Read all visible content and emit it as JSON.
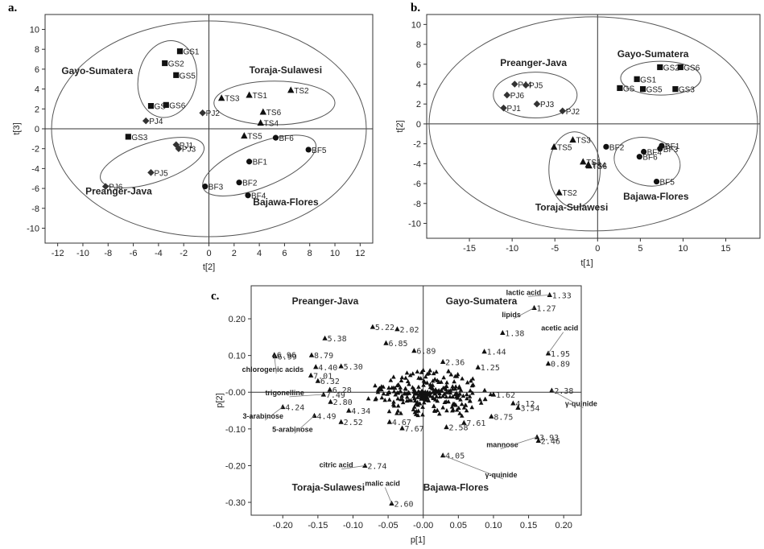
{
  "chart_data": [
    {
      "panel": "a.",
      "type": "scatter",
      "xlabel": "t[2]",
      "ylabel": "t[3]",
      "xlim": [
        -13,
        13
      ],
      "ylim": [
        -11.5,
        11.5
      ],
      "xticks": [
        -12,
        -10,
        -8,
        -6,
        -4,
        -2,
        0,
        2,
        4,
        6,
        8,
        10,
        12
      ],
      "yticks": [
        -10,
        -8,
        -6,
        -4,
        -2,
        0,
        2,
        4,
        6,
        8,
        10
      ],
      "groups": [
        {
          "name": "Gayo-Sumatera",
          "marker": "square",
          "points": [
            {
              "label": "GS1",
              "x": -2.3,
              "y": 7.8
            },
            {
              "label": "GS2",
              "x": -3.5,
              "y": 6.6
            },
            {
              "label": "GS5",
              "x": -2.6,
              "y": 5.4
            },
            {
              "label": "GS6",
              "x": -3.4,
              "y": 2.4
            },
            {
              "label": "GS",
              "x": -4.6,
              "y": 2.3
            },
            {
              "label": "GS3",
              "x": -6.4,
              "y": -0.8
            }
          ]
        },
        {
          "name": "Toraja-Sulawesi",
          "marker": "triangle",
          "points": [
            {
              "label": "TS2",
              "x": 6.5,
              "y": 3.9
            },
            {
              "label": "TS1",
              "x": 3.2,
              "y": 3.4
            },
            {
              "label": "TS3",
              "x": 1.0,
              "y": 3.1
            },
            {
              "label": "TS6",
              "x": 4.3,
              "y": 1.7
            },
            {
              "label": "TS4",
              "x": 4.1,
              "y": 0.6
            },
            {
              "label": "TS5",
              "x": 2.8,
              "y": -0.7
            }
          ]
        },
        {
          "name": "Preanger-Java",
          "marker": "diamond",
          "points": [
            {
              "label": "PJ4",
              "x": -5.0,
              "y": 0.8
            },
            {
              "label": "PJ2",
              "x": -0.5,
              "y": 1.6
            },
            {
              "label": "PJ1",
              "x": -2.6,
              "y": -1.6
            },
            {
              "label": "PJ3",
              "x": -2.4,
              "y": -2.0
            },
            {
              "label": "PJ5",
              "x": -4.6,
              "y": -4.4
            },
            {
              "label": "PJ6",
              "x": -8.2,
              "y": -5.8
            }
          ]
        },
        {
          "name": "Bajawa-Flores",
          "marker": "circle",
          "points": [
            {
              "label": "BF6",
              "x": 5.3,
              "y": -0.9
            },
            {
              "label": "BF5",
              "x": 7.9,
              "y": -2.1
            },
            {
              "label": "BF1",
              "x": 3.2,
              "y": -3.3
            },
            {
              "label": "BF2",
              "x": 2.4,
              "y": -5.4
            },
            {
              "label": "BF3",
              "x": -0.3,
              "y": -5.8
            },
            {
              "label": "BF4",
              "x": 3.1,
              "y": -6.7
            }
          ]
        }
      ],
      "group_labels": [
        "Gayo-Sumatera",
        "Toraja-Sulawesi",
        "Preanger-Java",
        "Bajawa-Flores"
      ]
    },
    {
      "panel": "b.",
      "type": "scatter",
      "xlabel": "t[1]",
      "ylabel": "t[2]",
      "xlim": [
        -20,
        19
      ],
      "ylim": [
        -11.5,
        11
      ],
      "xticks": [
        -15,
        -10,
        -5,
        0,
        5,
        10,
        15
      ],
      "yticks": [
        -10,
        -8,
        -6,
        -4,
        -2,
        0,
        2,
        4,
        6,
        8,
        10
      ],
      "groups": [
        {
          "name": "Gayo-Sumatera",
          "marker": "square",
          "points": [
            {
              "label": "GS2",
              "x": 7.3,
              "y": 5.7
            },
            {
              "label": "GS6",
              "x": 9.7,
              "y": 5.7
            },
            {
              "label": "GS1",
              "x": 4.6,
              "y": 4.5
            },
            {
              "label": "GS",
              "x": 2.6,
              "y": 3.6
            },
            {
              "label": "GS5",
              "x": 5.3,
              "y": 3.5
            },
            {
              "label": "GS3",
              "x": 9.1,
              "y": 3.5
            }
          ]
        },
        {
          "name": "Preanger-Java",
          "marker": "diamond",
          "points": [
            {
              "label": "PJ4",
              "x": -9.7,
              "y": 4.0
            },
            {
              "label": "PJ5",
              "x": -8.4,
              "y": 3.9
            },
            {
              "label": "PJ6",
              "x": -10.6,
              "y": 2.9
            },
            {
              "label": "PJ3",
              "x": -7.1,
              "y": 2.0
            },
            {
              "label": "PJ1",
              "x": -11.0,
              "y": 1.6
            },
            {
              "label": "PJ2",
              "x": -4.1,
              "y": 1.3
            }
          ]
        },
        {
          "name": "Toraja-Sulawesi",
          "marker": "triangle",
          "points": [
            {
              "label": "TS3",
              "x": -2.9,
              "y": -1.6
            },
            {
              "label": "TS5",
              "x": -5.1,
              "y": -2.3
            },
            {
              "label": "TS1",
              "x": -1.7,
              "y": -3.8
            },
            {
              "label": "TS4",
              "x": -1.1,
              "y": -4.1
            },
            {
              "label": "TS6",
              "x": -1.0,
              "y": -4.2
            },
            {
              "label": "TS2",
              "x": -4.5,
              "y": -6.9
            }
          ]
        },
        {
          "name": "Bajawa-Flores",
          "marker": "circle",
          "points": [
            {
              "label": "BF2",
              "x": 1.0,
              "y": -2.3
            },
            {
              "label": "BF1",
              "x": 7.5,
              "y": -2.2
            },
            {
              "label": "BF3",
              "x": 7.3,
              "y": -2.5
            },
            {
              "label": "BF4",
              "x": 5.4,
              "y": -2.8
            },
            {
              "label": "BF6",
              "x": 4.9,
              "y": -3.3
            },
            {
              "label": "BF5",
              "x": 6.9,
              "y": -5.8
            }
          ]
        }
      ],
      "group_labels": [
        "Preanger-Java",
        "Gayo-Sumatera",
        "Toraja-Sulawesi",
        "Bajawa-Flores"
      ]
    },
    {
      "panel": "c.",
      "type": "scatter",
      "xlabel": "p[1]",
      "ylabel": "p[2]",
      "xlim": [
        -0.245,
        0.225
      ],
      "ylim": [
        -0.335,
        0.29
      ],
      "xticks": [
        "-0.20",
        "-0.15",
        "-0.10",
        "-0.05",
        "-0.00",
        "0.05",
        "0.10",
        "0.15",
        "0.20"
      ],
      "xtick_values": [
        -0.2,
        -0.15,
        -0.1,
        -0.05,
        0.0,
        0.05,
        0.1,
        0.15,
        0.2
      ],
      "yticks": [
        "0.20",
        "0.10",
        "-0.00",
        "-0.10",
        "-0.20",
        "-0.30"
      ],
      "ytick_values": [
        0.2,
        0.1,
        0.0,
        -0.1,
        -0.2,
        -0.3
      ],
      "quadrant_labels": [
        "Preanger-Java",
        "Gayo-Sumatera",
        "Toraja-Sulawesi",
        "Bajawa-Flores"
      ],
      "points": [
        {
          "label": "1.33",
          "x": 0.18,
          "y": 0.265
        },
        {
          "label": "1.27",
          "x": 0.158,
          "y": 0.23
        },
        {
          "label": "1.38",
          "x": 0.113,
          "y": 0.162
        },
        {
          "label": "1.95",
          "x": 0.178,
          "y": 0.106
        },
        {
          "label": "0.89",
          "x": 0.178,
          "y": 0.078
        },
        {
          "label": "1.44",
          "x": 0.087,
          "y": 0.111
        },
        {
          "label": "5.22",
          "x": -0.072,
          "y": 0.178
        },
        {
          "label": "2.02",
          "x": -0.037,
          "y": 0.172
        },
        {
          "label": "5.38",
          "x": -0.14,
          "y": 0.147
        },
        {
          "label": "6.85",
          "x": -0.053,
          "y": 0.134
        },
        {
          "label": "6.96",
          "x": -0.212,
          "y": 0.102
        },
        {
          "label": "6.99",
          "x": -0.211,
          "y": 0.098
        },
        {
          "label": "8.79",
          "x": -0.159,
          "y": 0.101
        },
        {
          "label": "7.01",
          "x": -0.16,
          "y": 0.046
        },
        {
          "label": "4.40",
          "x": -0.153,
          "y": 0.069
        },
        {
          "label": "5.30",
          "x": -0.117,
          "y": 0.071
        },
        {
          "label": "6.32",
          "x": -0.15,
          "y": 0.031
        },
        {
          "label": "6.28",
          "x": -0.133,
          "y": 0.007
        },
        {
          "label": "7.49",
          "x": -0.142,
          "y": -0.006
        },
        {
          "label": "2.80",
          "x": -0.132,
          "y": -0.026
        },
        {
          "label": "4.24",
          "x": -0.2,
          "y": -0.04
        },
        {
          "label": "4.49",
          "x": -0.155,
          "y": -0.064
        },
        {
          "label": "4.34",
          "x": -0.106,
          "y": -0.05
        },
        {
          "label": "2.52",
          "x": -0.117,
          "y": -0.081
        },
        {
          "label": "2.74",
          "x": -0.083,
          "y": -0.2
        },
        {
          "label": "2.60",
          "x": -0.045,
          "y": -0.303
        },
        {
          "label": "4.67",
          "x": -0.048,
          "y": -0.081
        },
        {
          "label": "7.67",
          "x": -0.03,
          "y": -0.098
        },
        {
          "label": "6.89",
          "x": -0.013,
          "y": 0.113
        },
        {
          "label": "2.36",
          "x": 0.028,
          "y": 0.083
        },
        {
          "label": "2.58",
          "x": 0.033,
          "y": -0.095
        },
        {
          "label": "7.61",
          "x": 0.058,
          "y": -0.083
        },
        {
          "label": "4.05",
          "x": 0.028,
          "y": -0.172
        },
        {
          "label": "1.25",
          "x": 0.078,
          "y": 0.068
        },
        {
          "label": "1.62",
          "x": 0.1,
          "y": -0.006
        },
        {
          "label": "4.12",
          "x": 0.128,
          "y": -0.03
        },
        {
          "label": "3.54",
          "x": 0.135,
          "y": -0.042
        },
        {
          "label": "2.38",
          "x": 0.183,
          "y": 0.005
        },
        {
          "label": "3.93",
          "x": 0.162,
          "y": -0.122
        },
        {
          "label": "2.46",
          "x": 0.164,
          "y": -0.132
        },
        {
          "label": "8.75",
          "x": 0.097,
          "y": -0.066
        }
      ],
      "annotations": [
        {
          "text": "lactic acid",
          "target": "1.33"
        },
        {
          "text": "lipids",
          "target": "1.27"
        },
        {
          "text": "acetic acid",
          "target": "1.95"
        },
        {
          "text": "chlorogenic acids",
          "target": "6.96"
        },
        {
          "text": "trigonelline",
          "target": "7.49"
        },
        {
          "text": "3-arabinose",
          "target": "4.24"
        },
        {
          "text": "5-arabinose",
          "target": "4.49"
        },
        {
          "text": "γ-quinide",
          "target": "2.38"
        },
        {
          "text": "mannose",
          "target": "3.93"
        },
        {
          "text": "γ-quinide",
          "target": "4.05"
        },
        {
          "text": "citric acid",
          "target": "2.74"
        },
        {
          "text": "malic acid",
          "target": "2.60"
        }
      ]
    }
  ]
}
